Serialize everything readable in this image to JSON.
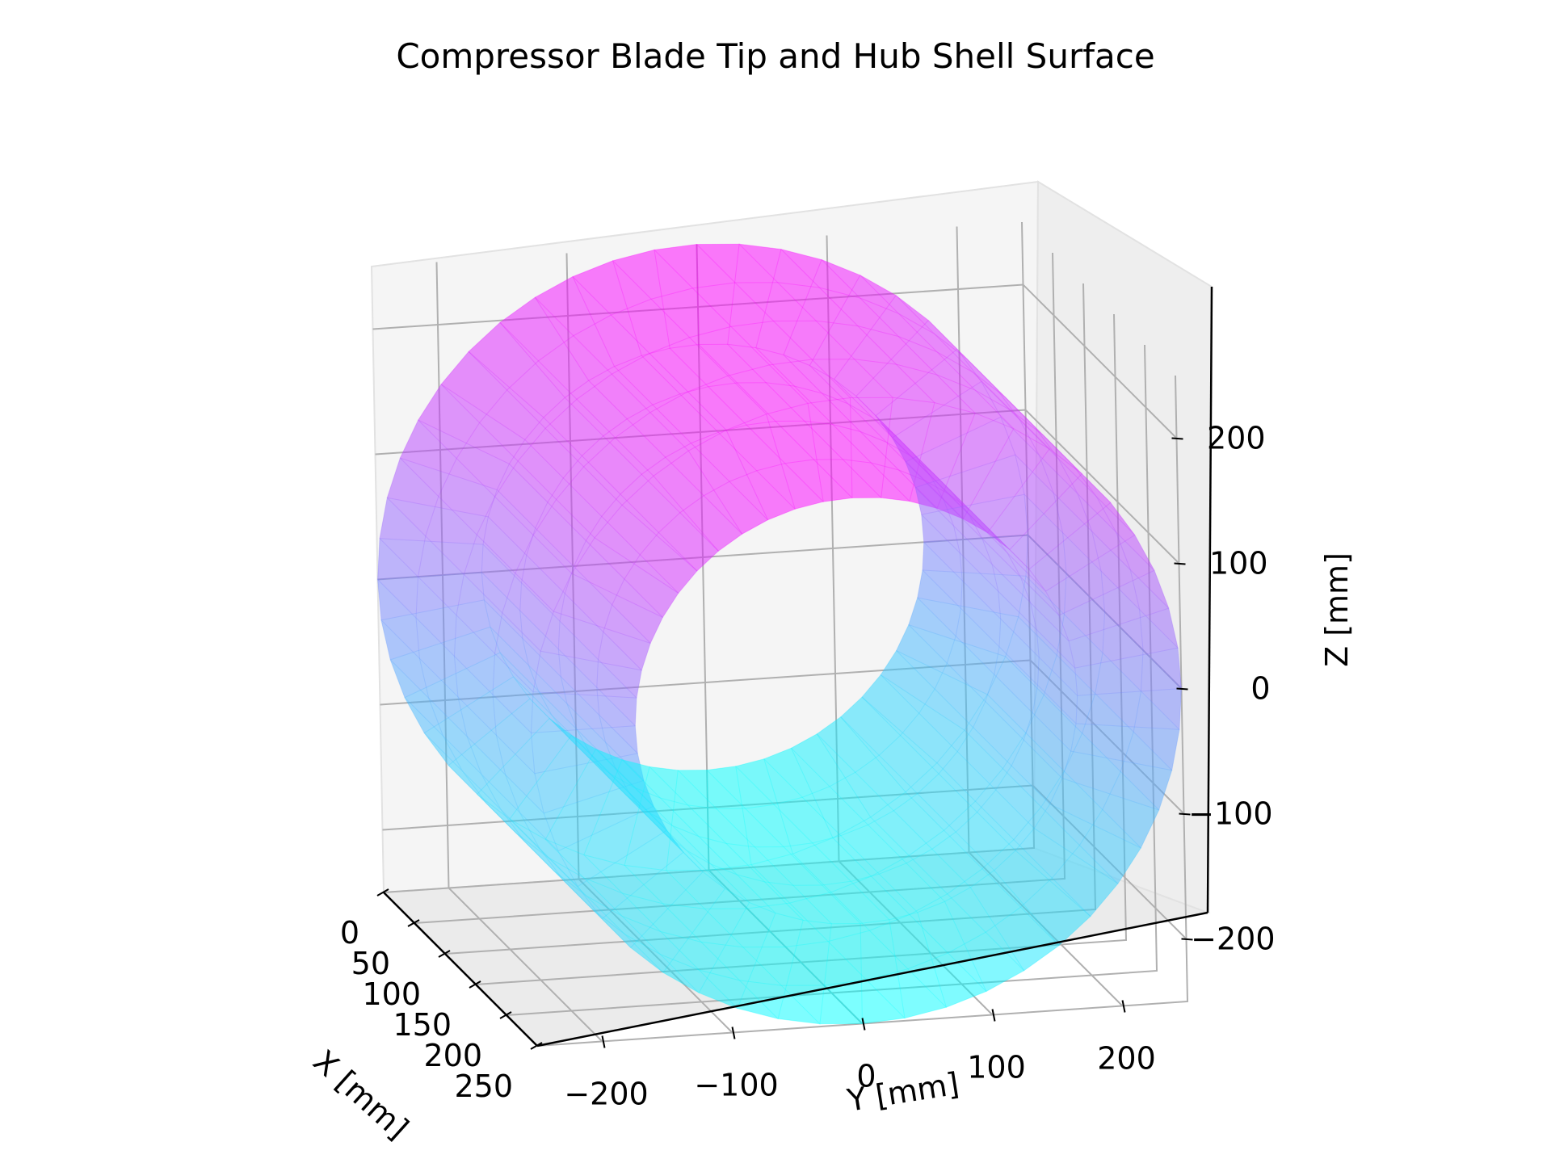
{
  "chart_data": {
    "type": "surface",
    "title": "Compressor Blade Tip and Hub Shell Surface",
    "xlabel": "X [mm]",
    "ylabel": "Y [mm]",
    "zlabel": "Z [mm]",
    "x_ticks": [
      "0",
      "50",
      "100",
      "150",
      "200",
      "250"
    ],
    "y_ticks": [
      "−200",
      "−100",
      "0",
      "100",
      "200"
    ],
    "z_ticks": [
      "−200",
      "−100",
      "0",
      "100",
      "200"
    ],
    "xlim": [
      0,
      250
    ],
    "ylim": [
      -250,
      250
    ],
    "zlim": [
      -250,
      250
    ],
    "grid": true,
    "colormap": "cool",
    "colors": {
      "low": "#00ffff",
      "high": "#ff00ff"
    },
    "series": [
      {
        "shape": "annular shell",
        "outer_radius": 250,
        "inner_radius": 170,
        "x_range": [
          0,
          250
        ]
      }
    ]
  }
}
